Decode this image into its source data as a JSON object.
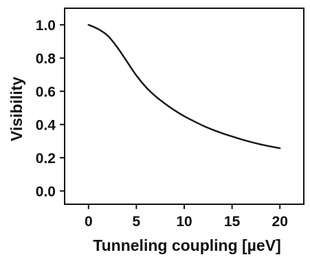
{
  "chart_data": {
    "type": "line",
    "title": "",
    "xlabel": "Tunneling coupling [µeV]",
    "ylabel": "Visibility",
    "xlim": [
      -2.5,
      22.5
    ],
    "ylim": [
      -0.08,
      1.1
    ],
    "xticks": [
      0,
      5,
      10,
      15,
      20
    ],
    "xtick_labels": [
      "0",
      "5",
      "10",
      "15",
      "20"
    ],
    "yticks": [
      0.0,
      0.2,
      0.4,
      0.6,
      0.8,
      1.0
    ],
    "ytick_labels": [
      "0.0",
      "0.2",
      "0.4",
      "0.6",
      "0.8",
      "1.0"
    ],
    "grid": false,
    "legend": "none",
    "series": [
      {
        "color": "#1a1a1a",
        "x": [
          0,
          1,
          2,
          3,
          4,
          5,
          6,
          7,
          8,
          9,
          10,
          11,
          12,
          13,
          14,
          15,
          16,
          17,
          18,
          19,
          20
        ],
        "y": [
          1.0,
          0.975,
          0.935,
          0.865,
          0.78,
          0.695,
          0.625,
          0.57,
          0.525,
          0.485,
          0.45,
          0.42,
          0.392,
          0.368,
          0.347,
          0.328,
          0.31,
          0.294,
          0.28,
          0.268,
          0.257
        ]
      }
    ]
  }
}
